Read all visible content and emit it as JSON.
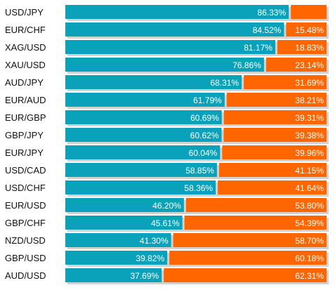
{
  "chart_data": {
    "type": "bar",
    "orientation": "horizontal",
    "stacked": true,
    "grid": false,
    "legend": "none",
    "categories": [
      "USD/JPY",
      "EUR/CHF",
      "XAG/USD",
      "XAU/USD",
      "AUD/JPY",
      "EUR/AUD",
      "EUR/GBP",
      "GBP/JPY",
      "EUR/JPY",
      "USD/CAD",
      "USD/CHF",
      "EUR/USD",
      "GBP/CHF",
      "NZD/USD",
      "GBP/USD",
      "AUD/USD"
    ],
    "series": [
      {
        "color": "#0aa2bb",
        "values": [
          86.33,
          84.52,
          81.17,
          76.86,
          68.31,
          61.79,
          60.69,
          60.62,
          60.04,
          58.85,
          58.36,
          46.2,
          45.61,
          41.3,
          39.82,
          37.69
        ],
        "labels": [
          "86.33%",
          "84.52%",
          "81.17%",
          "76.86%",
          "68.31%",
          "61.79%",
          "60.69%",
          "60.62%",
          "60.04%",
          "58.85%",
          "58.36%",
          "46.20%",
          "45.61%",
          "41.30%",
          "39.82%",
          "37.69%"
        ]
      },
      {
        "color": "#ff6600",
        "values": [
          13.67,
          15.48,
          18.83,
          23.14,
          31.69,
          38.21,
          39.31,
          39.38,
          39.96,
          41.15,
          41.64,
          53.8,
          54.39,
          58.7,
          60.18,
          62.31
        ],
        "labels": [
          "",
          "15.48%",
          "18.83%",
          "23.14%",
          "31.69%",
          "38.21%",
          "39.31%",
          "39.38%",
          "39.96%",
          "41.15%",
          "41.64%",
          "53.80%",
          "54.39%",
          "58.70%",
          "60.18%",
          "62.31%"
        ]
      }
    ],
    "xlim": [
      0,
      100
    ]
  }
}
